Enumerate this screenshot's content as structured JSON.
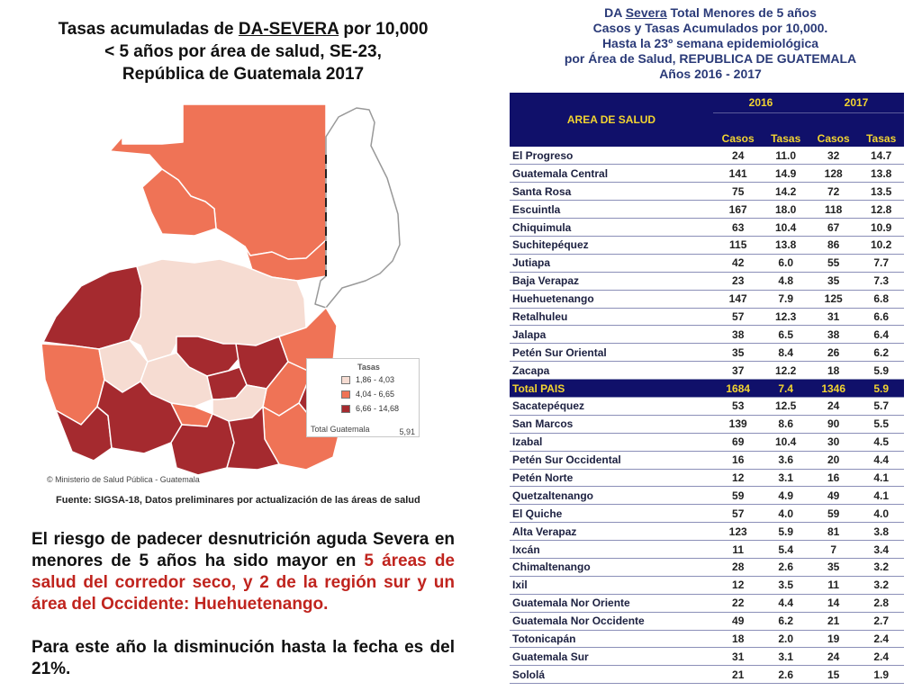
{
  "map_section": {
    "title_pre": "Tasas acumuladas de ",
    "title_underlined": "DA-SEVERA",
    "title_post": " por 10,000",
    "title_line2": "< 5 años por área de salud, SE-23,",
    "title_line3": "República de Guatemala 2017",
    "copyright": "© Ministerio de Salud Pública - Guatemala",
    "source": "Fuente: SIGSA-18, Datos preliminares por actualización de las áreas de salud"
  },
  "legend": {
    "title": "Tasas",
    "items": [
      {
        "label": "1,86 - 4,03",
        "color": "#f6dcd2"
      },
      {
        "label": "4,04 - 6,65",
        "color": "#ef7356"
      },
      {
        "label": "6,66 - 14,68",
        "color": "#a52a2f"
      }
    ],
    "total_label": "Total Guatemala",
    "total_value": "5,91"
  },
  "paragraphs": {
    "p1_a": "El riesgo de padecer desnutrición aguda Severa en menores de 5 años ha sido mayor en ",
    "p1_red": "5 áreas de salud del corredor seco, y 2 de la región sur y un área del Occidente: Huehuetenango.",
    "p2": "Para este año la disminución hasta la fecha es del 21%."
  },
  "table_section": {
    "title_l1_pre": "DA ",
    "title_l1_u": "Severa",
    "title_l1_post": " Total Menores de 5 años",
    "title_l2": "Casos y Tasas Acumulados por 10,000.",
    "title_l3": "Hasta la 23º semana epidemiológica",
    "title_l4": "por Área de Salud, REPUBLICA DE GUATEMALA",
    "title_l5": "Años 2016 - 2017"
  },
  "table": {
    "header_area": "AREA DE SALUD",
    "year1": "2016",
    "year2": "2017",
    "col_casos": "Casos",
    "col_tasas": "Tasas",
    "rows": [
      {
        "area": "El Progreso",
        "c16": "24",
        "t16": "11.0",
        "c17": "32",
        "t17": "14.7"
      },
      {
        "area": "Guatemala Central",
        "c16": "141",
        "t16": "14.9",
        "c17": "128",
        "t17": "13.8"
      },
      {
        "area": "Santa Rosa",
        "c16": "75",
        "t16": "14.2",
        "c17": "72",
        "t17": "13.5"
      },
      {
        "area": "Escuintla",
        "c16": "167",
        "t16": "18.0",
        "c17": "118",
        "t17": "12.8"
      },
      {
        "area": "Chiquimula",
        "c16": "63",
        "t16": "10.4",
        "c17": "67",
        "t17": "10.9"
      },
      {
        "area": "Suchitepéquez",
        "c16": "115",
        "t16": "13.8",
        "c17": "86",
        "t17": "10.2"
      },
      {
        "area": "Jutiapa",
        "c16": "42",
        "t16": "6.0",
        "c17": "55",
        "t17": "7.7"
      },
      {
        "area": "Baja Verapaz",
        "c16": "23",
        "t16": "4.8",
        "c17": "35",
        "t17": "7.3"
      },
      {
        "area": "Huehuetenango",
        "c16": "147",
        "t16": "7.9",
        "c17": "125",
        "t17": "6.8"
      },
      {
        "area": "Retalhuleu",
        "c16": "57",
        "t16": "12.3",
        "c17": "31",
        "t17": "6.6"
      },
      {
        "area": "Jalapa",
        "c16": "38",
        "t16": "6.5",
        "c17": "38",
        "t17": "6.4"
      },
      {
        "area": "Petén Sur Oriental",
        "c16": "35",
        "t16": "8.4",
        "c17": "26",
        "t17": "6.2"
      },
      {
        "area": "Zacapa",
        "c16": "37",
        "t16": "12.2",
        "c17": "18",
        "t17": "5.9"
      },
      {
        "area": "Total PAIS",
        "c16": "1684",
        "t16": "7.4",
        "c17": "1346",
        "t17": "5.9",
        "total": true
      },
      {
        "area": "Sacatepéquez",
        "c16": "53",
        "t16": "12.5",
        "c17": "24",
        "t17": "5.7"
      },
      {
        "area": "San Marcos",
        "c16": "139",
        "t16": "8.6",
        "c17": "90",
        "t17": "5.5"
      },
      {
        "area": "Izabal",
        "c16": "69",
        "t16": "10.4",
        "c17": "30",
        "t17": "4.5"
      },
      {
        "area": "Petén Sur Occidental",
        "c16": "16",
        "t16": "3.6",
        "c17": "20",
        "t17": "4.4"
      },
      {
        "area": "Petén Norte",
        "c16": "12",
        "t16": "3.1",
        "c17": "16",
        "t17": "4.1"
      },
      {
        "area": "Quetzaltenango",
        "c16": "59",
        "t16": "4.9",
        "c17": "49",
        "t17": "4.1"
      },
      {
        "area": "El Quiche",
        "c16": "57",
        "t16": "4.0",
        "c17": "59",
        "t17": "4.0"
      },
      {
        "area": "Alta Verapaz",
        "c16": "123",
        "t16": "5.9",
        "c17": "81",
        "t17": "3.8"
      },
      {
        "area": "Ixcán",
        "c16": "11",
        "t16": "5.4",
        "c17": "7",
        "t17": "3.4"
      },
      {
        "area": "Chimaltenango",
        "c16": "28",
        "t16": "2.6",
        "c17": "35",
        "t17": "3.2"
      },
      {
        "area": "Ixil",
        "c16": "12",
        "t16": "3.5",
        "c17": "11",
        "t17": "3.2"
      },
      {
        "area": "Guatemala Nor Oriente",
        "c16": "22",
        "t16": "4.4",
        "c17": "14",
        "t17": "2.8"
      },
      {
        "area": "Guatemala Nor Occidente",
        "c16": "49",
        "t16": "6.2",
        "c17": "21",
        "t17": "2.7"
      },
      {
        "area": "Totonicapán",
        "c16": "18",
        "t16": "2.0",
        "c17": "19",
        "t17": "2.4"
      },
      {
        "area": "Guatemala Sur",
        "c16": "31",
        "t16": "3.1",
        "c17": "24",
        "t17": "2.4"
      },
      {
        "area": "Sololá",
        "c16": "21",
        "t16": "2.6",
        "c17": "15",
        "t17": "1.9"
      }
    ]
  }
}
